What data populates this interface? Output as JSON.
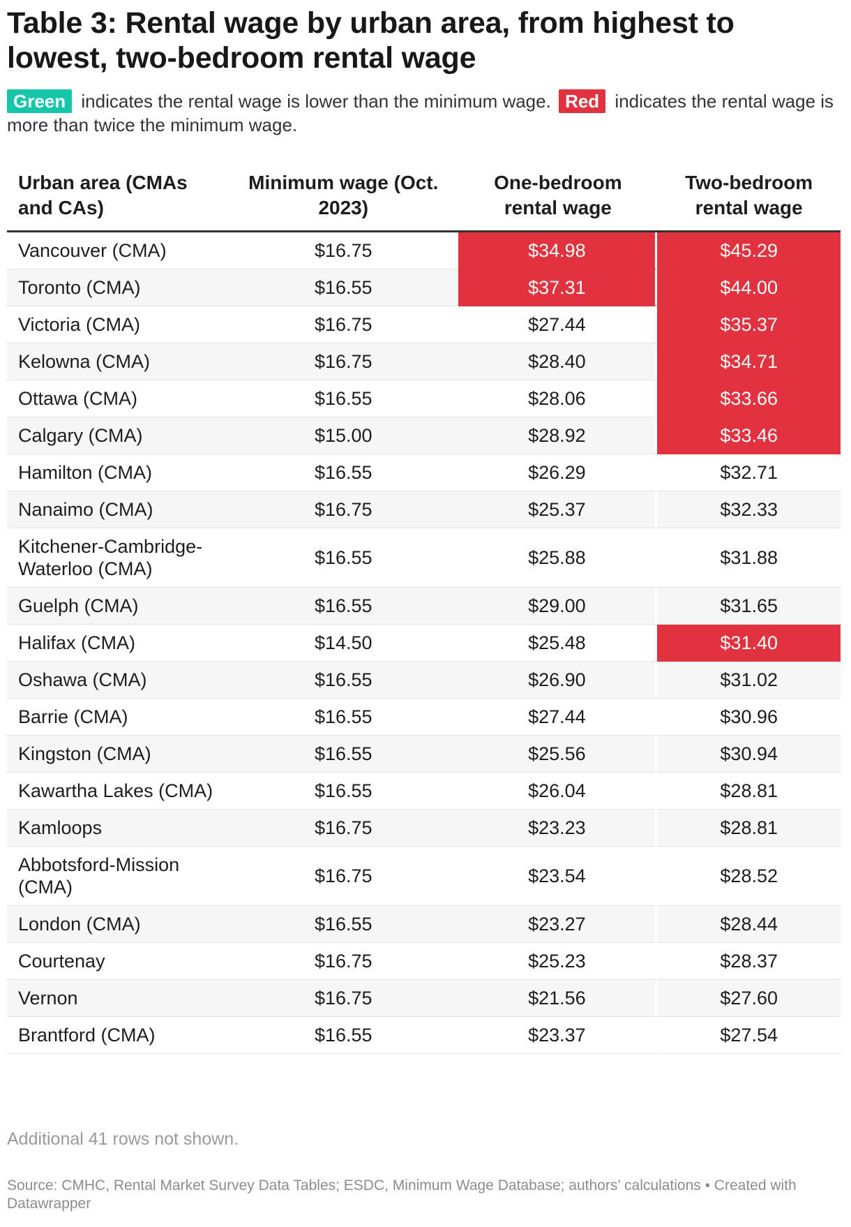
{
  "header": {
    "title": "Table 3: Rental wage by urban area, from highest to lowest, two-bedroom rental wage",
    "desc_green_tag": "Green",
    "desc_text_1": " indicates the rental wage is lower than the minimum wage. ",
    "desc_red_tag": "Red",
    "desc_text_2": " indicates the rental wage is more than twice the minimum wage."
  },
  "colors": {
    "red": "#e2323f",
    "green": "#15c7a8",
    "row_alt": "#f6f6f6"
  },
  "chart_data": {
    "type": "table",
    "title": "Table 3: Rental wage by urban area, from highest to lowest, two-bedroom rental wage",
    "columns": [
      "Urban area (CMAs and CAs)",
      "Minimum wage (Oct. 2023)",
      "One-bedroom rental wage",
      "Two-bedroom rental wage"
    ],
    "rows": [
      {
        "area": "Vancouver (CMA)",
        "min_wage": "$16.75",
        "one_bed": "$34.98",
        "two_bed": "$45.29",
        "one_hl": "red",
        "two_hl": "red"
      },
      {
        "area": "Toronto (CMA)",
        "min_wage": "$16.55",
        "one_bed": "$37.31",
        "two_bed": "$44.00",
        "one_hl": "red",
        "two_hl": "red"
      },
      {
        "area": "Victoria (CMA)",
        "min_wage": "$16.75",
        "one_bed": "$27.44",
        "two_bed": "$35.37",
        "one_hl": "",
        "two_hl": "red"
      },
      {
        "area": "Kelowna (CMA)",
        "min_wage": "$16.75",
        "one_bed": "$28.40",
        "two_bed": "$34.71",
        "one_hl": "",
        "two_hl": "red"
      },
      {
        "area": "Ottawa (CMA)",
        "min_wage": "$16.55",
        "one_bed": "$28.06",
        "two_bed": "$33.66",
        "one_hl": "",
        "two_hl": "red"
      },
      {
        "area": "Calgary (CMA)",
        "min_wage": "$15.00",
        "one_bed": "$28.92",
        "two_bed": "$33.46",
        "one_hl": "",
        "two_hl": "red"
      },
      {
        "area": "Hamilton (CMA)",
        "min_wage": "$16.55",
        "one_bed": "$26.29",
        "two_bed": "$32.71",
        "one_hl": "",
        "two_hl": ""
      },
      {
        "area": "Nanaimo (CMA)",
        "min_wage": "$16.75",
        "one_bed": "$25.37",
        "two_bed": "$32.33",
        "one_hl": "",
        "two_hl": ""
      },
      {
        "area": "Kitchener-Cambridge-Waterloo (CMA)",
        "min_wage": "$16.55",
        "one_bed": "$25.88",
        "two_bed": "$31.88",
        "one_hl": "",
        "two_hl": ""
      },
      {
        "area": "Guelph (CMA)",
        "min_wage": "$16.55",
        "one_bed": "$29.00",
        "two_bed": "$31.65",
        "one_hl": "",
        "two_hl": ""
      },
      {
        "area": "Halifax (CMA)",
        "min_wage": "$14.50",
        "one_bed": "$25.48",
        "two_bed": "$31.40",
        "one_hl": "",
        "two_hl": "red"
      },
      {
        "area": "Oshawa (CMA)",
        "min_wage": "$16.55",
        "one_bed": "$26.90",
        "two_bed": "$31.02",
        "one_hl": "",
        "two_hl": ""
      },
      {
        "area": "Barrie (CMA)",
        "min_wage": "$16.55",
        "one_bed": "$27.44",
        "two_bed": "$30.96",
        "one_hl": "",
        "two_hl": ""
      },
      {
        "area": "Kingston (CMA)",
        "min_wage": "$16.55",
        "one_bed": "$25.56",
        "two_bed": "$30.94",
        "one_hl": "",
        "two_hl": ""
      },
      {
        "area": "Kawartha Lakes (CMA)",
        "min_wage": "$16.55",
        "one_bed": "$26.04",
        "two_bed": "$28.81",
        "one_hl": "",
        "two_hl": ""
      },
      {
        "area": "Kamloops",
        "min_wage": "$16.75",
        "one_bed": "$23.23",
        "two_bed": "$28.81",
        "one_hl": "",
        "two_hl": ""
      },
      {
        "area": "Abbotsford-Mission (CMA)",
        "min_wage": "$16.75",
        "one_bed": "$23.54",
        "two_bed": "$28.52",
        "one_hl": "",
        "two_hl": ""
      },
      {
        "area": "London (CMA)",
        "min_wage": "$16.55",
        "one_bed": "$23.27",
        "two_bed": "$28.44",
        "one_hl": "",
        "two_hl": ""
      },
      {
        "area": "Courtenay",
        "min_wage": "$16.75",
        "one_bed": "$25.23",
        "two_bed": "$28.37",
        "one_hl": "",
        "two_hl": ""
      },
      {
        "area": "Vernon",
        "min_wage": "$16.75",
        "one_bed": "$21.56",
        "two_bed": "$27.60",
        "one_hl": "",
        "two_hl": ""
      },
      {
        "area": "Brantford (CMA)",
        "min_wage": "$16.55",
        "one_bed": "$23.37",
        "two_bed": "$27.54",
        "one_hl": "",
        "two_hl": ""
      }
    ]
  },
  "footer": {
    "rows_note": "Additional 41 rows not shown.",
    "source": "Source: CMHC, Rental Market Survey Data Tables; ESDC, Minimum Wage Database; authors’ calculations • Created with Datawrapper"
  }
}
